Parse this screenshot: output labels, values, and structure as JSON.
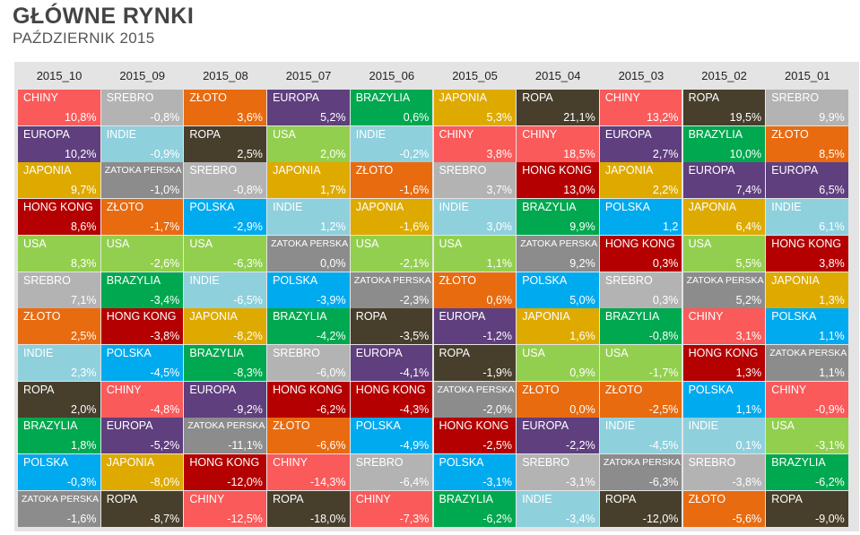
{
  "title": "GŁÓWNE RYNKI",
  "subtitle": "PAŹDZIERNIK 2015",
  "colors": {
    "CHINY": "#fa5a5a",
    "SREBRO": "#b3b3b3",
    "ZŁOTO": "#e86b10",
    "EUROPA": "#5f3f7e",
    "BRAZYLIA": "#00a84f",
    "JAPONIA": "#deaa00",
    "ROPA": "#473f2c",
    "INDIE": "#8fd0dd",
    "USA": "#92cf4e",
    "ZATOKA PERSKA": "#8c8c8c",
    "HONG KONG": "#b40000",
    "POLSKA": "#00aaef"
  },
  "chart_data": {
    "type": "table",
    "columns": [
      "2015_10",
      "2015_09",
      "2015_08",
      "2015_07",
      "2015_06",
      "2015_05",
      "2015_04",
      "2015_03",
      "2015_02",
      "2015_01"
    ],
    "grid": [
      [
        {
          "name": "CHINY",
          "value": "10,8%"
        },
        {
          "name": "EUROPA",
          "value": "10,2%"
        },
        {
          "name": "JAPONIA",
          "value": "9,7%"
        },
        {
          "name": "HONG KONG",
          "value": "8,6%"
        },
        {
          "name": "USA",
          "value": "8,3%"
        },
        {
          "name": "SREBRO",
          "value": "7,1%"
        },
        {
          "name": "ZŁOTO",
          "value": "2,5%"
        },
        {
          "name": "INDIE",
          "value": "2,3%"
        },
        {
          "name": "ROPA",
          "value": "2,0%"
        },
        {
          "name": "BRAZYLIA",
          "value": "1,8%"
        },
        {
          "name": "POLSKA",
          "value": "-0,3%"
        },
        {
          "name": "ZATOKA PERSKA",
          "value": "-1,6%"
        }
      ],
      [
        {
          "name": "SREBRO",
          "value": "-0,8%"
        },
        {
          "name": "INDIE",
          "value": "-0,9%"
        },
        {
          "name": "ZATOKA PERSKA",
          "value": "-1,0%"
        },
        {
          "name": "ZŁOTO",
          "value": "-1,7%"
        },
        {
          "name": "USA",
          "value": "-2,6%"
        },
        {
          "name": "BRAZYLIA",
          "value": "-3,4%"
        },
        {
          "name": "HONG KONG",
          "value": "-3,8%"
        },
        {
          "name": "POLSKA",
          "value": "-4,5%"
        },
        {
          "name": "CHINY",
          "value": "-4,8%"
        },
        {
          "name": "EUROPA",
          "value": "-5,2%"
        },
        {
          "name": "JAPONIA",
          "value": "-8,0%"
        },
        {
          "name": "ROPA",
          "value": "-8,7%"
        }
      ],
      [
        {
          "name": "ZŁOTO",
          "value": "3,6%"
        },
        {
          "name": "ROPA",
          "value": "2,5%"
        },
        {
          "name": "SREBRO",
          "value": "-0,8%"
        },
        {
          "name": "POLSKA",
          "value": "-2,9%"
        },
        {
          "name": "USA",
          "value": "-6,3%"
        },
        {
          "name": "INDIE",
          "value": "-6,5%"
        },
        {
          "name": "JAPONIA",
          "value": "-8,2%"
        },
        {
          "name": "BRAZYLIA",
          "value": "-8,3%"
        },
        {
          "name": "EUROPA",
          "value": "-9,2%"
        },
        {
          "name": "ZATOKA PERSKA",
          "value": "-11,1%"
        },
        {
          "name": "HONG KONG",
          "value": "-12,0%"
        },
        {
          "name": "CHINY",
          "value": "-12,5%"
        }
      ],
      [
        {
          "name": "EUROPA",
          "value": "5,2%"
        },
        {
          "name": "USA",
          "value": "2,0%"
        },
        {
          "name": "JAPONIA",
          "value": "1,7%"
        },
        {
          "name": "INDIE",
          "value": "1,2%"
        },
        {
          "name": "ZATOKA PERSKA",
          "value": "0,0%"
        },
        {
          "name": "POLSKA",
          "value": "-3,9%"
        },
        {
          "name": "BRAZYLIA",
          "value": "-4,2%"
        },
        {
          "name": "SREBRO",
          "value": "-6,0%"
        },
        {
          "name": "HONG KONG",
          "value": "-6,2%"
        },
        {
          "name": "ZŁOTO",
          "value": "-6,6%"
        },
        {
          "name": "CHINY",
          "value": "-14,3%"
        },
        {
          "name": "ROPA",
          "value": "-18,0%"
        }
      ],
      [
        {
          "name": "BRAZYLIA",
          "value": "0,6%"
        },
        {
          "name": "INDIE",
          "value": "-0,2%"
        },
        {
          "name": "ZŁOTO",
          "value": "-1,6%"
        },
        {
          "name": "JAPONIA",
          "value": "-1,6%"
        },
        {
          "name": "USA",
          "value": "-2,1%"
        },
        {
          "name": "ZATOKA PERSKA",
          "value": "-2,3%"
        },
        {
          "name": "ROPA",
          "value": "-3,5%"
        },
        {
          "name": "EUROPA",
          "value": "-4,1%"
        },
        {
          "name": "HONG KONG",
          "value": "-4,3%"
        },
        {
          "name": "POLSKA",
          "value": "-4,9%"
        },
        {
          "name": "SREBRO",
          "value": "-6,4%"
        },
        {
          "name": "CHINY",
          "value": "-7,3%"
        }
      ],
      [
        {
          "name": "JAPONIA",
          "value": "5,3%"
        },
        {
          "name": "CHINY",
          "value": "3,8%"
        },
        {
          "name": "SREBRO",
          "value": "3,7%"
        },
        {
          "name": "INDIE",
          "value": "3,0%"
        },
        {
          "name": "USA",
          "value": "1,1%"
        },
        {
          "name": "ZŁOTO",
          "value": "0,6%"
        },
        {
          "name": "EUROPA",
          "value": "-1,2%"
        },
        {
          "name": "ROPA",
          "value": "-1,9%"
        },
        {
          "name": "ZATOKA PERSKA",
          "value": "-2,0%"
        },
        {
          "name": "HONG KONG",
          "value": "-2,5%"
        },
        {
          "name": "POLSKA",
          "value": "-3,1%"
        },
        {
          "name": "BRAZYLIA",
          "value": "-6,2%"
        }
      ],
      [
        {
          "name": "ROPA",
          "value": "21,1%"
        },
        {
          "name": "CHINY",
          "value": "18,5%"
        },
        {
          "name": "HONG KONG",
          "value": "13,0%"
        },
        {
          "name": "BRAZYLIA",
          "value": "9,9%"
        },
        {
          "name": "ZATOKA PERSKA",
          "value": "9,2%"
        },
        {
          "name": "POLSKA",
          "value": "5,0%"
        },
        {
          "name": "JAPONIA",
          "value": "1,6%"
        },
        {
          "name": "USA",
          "value": "0,9%"
        },
        {
          "name": "ZŁOTO",
          "value": "0,0%"
        },
        {
          "name": "EUROPA",
          "value": "-2,2%"
        },
        {
          "name": "SREBRO",
          "value": "-3,1%"
        },
        {
          "name": "INDIE",
          "value": "-3,4%"
        }
      ],
      [
        {
          "name": "CHINY",
          "value": "13,2%"
        },
        {
          "name": "EUROPA",
          "value": "2,7%"
        },
        {
          "name": "JAPONIA",
          "value": "2,2%"
        },
        {
          "name": "POLSKA",
          "value": "1,2"
        },
        {
          "name": "HONG KONG",
          "value": "0,3%"
        },
        {
          "name": "SREBRO",
          "value": "0,3%"
        },
        {
          "name": "BRAZYLIA",
          "value": "-0,8%"
        },
        {
          "name": "USA",
          "value": "-1,7%"
        },
        {
          "name": "ZŁOTO",
          "value": "-2,5%"
        },
        {
          "name": "INDIE",
          "value": "-4,5%"
        },
        {
          "name": "ZATOKA PERSKA",
          "value": "-6,3%"
        },
        {
          "name": "ROPA",
          "value": "-12,0%"
        }
      ],
      [
        {
          "name": "ROPA",
          "value": "19,5%"
        },
        {
          "name": "BRAZYLIA",
          "value": "10,0%"
        },
        {
          "name": "EUROPA",
          "value": "7,4%"
        },
        {
          "name": "JAPONIA",
          "value": "6,4%"
        },
        {
          "name": "USA",
          "value": "5,5%"
        },
        {
          "name": "ZATOKA PERSKA",
          "value": "5,2%"
        },
        {
          "name": "CHINY",
          "value": "3,1%"
        },
        {
          "name": "HONG KONG",
          "value": "1,3%"
        },
        {
          "name": "POLSKA",
          "value": "1,1%"
        },
        {
          "name": "INDIE",
          "value": "0,1%"
        },
        {
          "name": "SREBRO",
          "value": "-3,8%"
        },
        {
          "name": "ZŁOTO",
          "value": "-5,6%"
        }
      ],
      [
        {
          "name": "SREBRO",
          "value": "9,9%"
        },
        {
          "name": "ZŁOTO",
          "value": "8,5%"
        },
        {
          "name": "EUROPA",
          "value": "6,5%"
        },
        {
          "name": "INDIE",
          "value": "6,1%"
        },
        {
          "name": "HONG KONG",
          "value": "3,8%"
        },
        {
          "name": "JAPONIA",
          "value": "1,3%"
        },
        {
          "name": "POLSKA",
          "value": "1,1%"
        },
        {
          "name": "ZATOKA PERSKA",
          "value": "1,1%"
        },
        {
          "name": "CHINY",
          "value": "-0,9%"
        },
        {
          "name": "USA",
          "value": "-3,1%"
        },
        {
          "name": "BRAZYLIA",
          "value": "-6,2%"
        },
        {
          "name": "ROPA",
          "value": "-9,0%"
        }
      ]
    ]
  }
}
